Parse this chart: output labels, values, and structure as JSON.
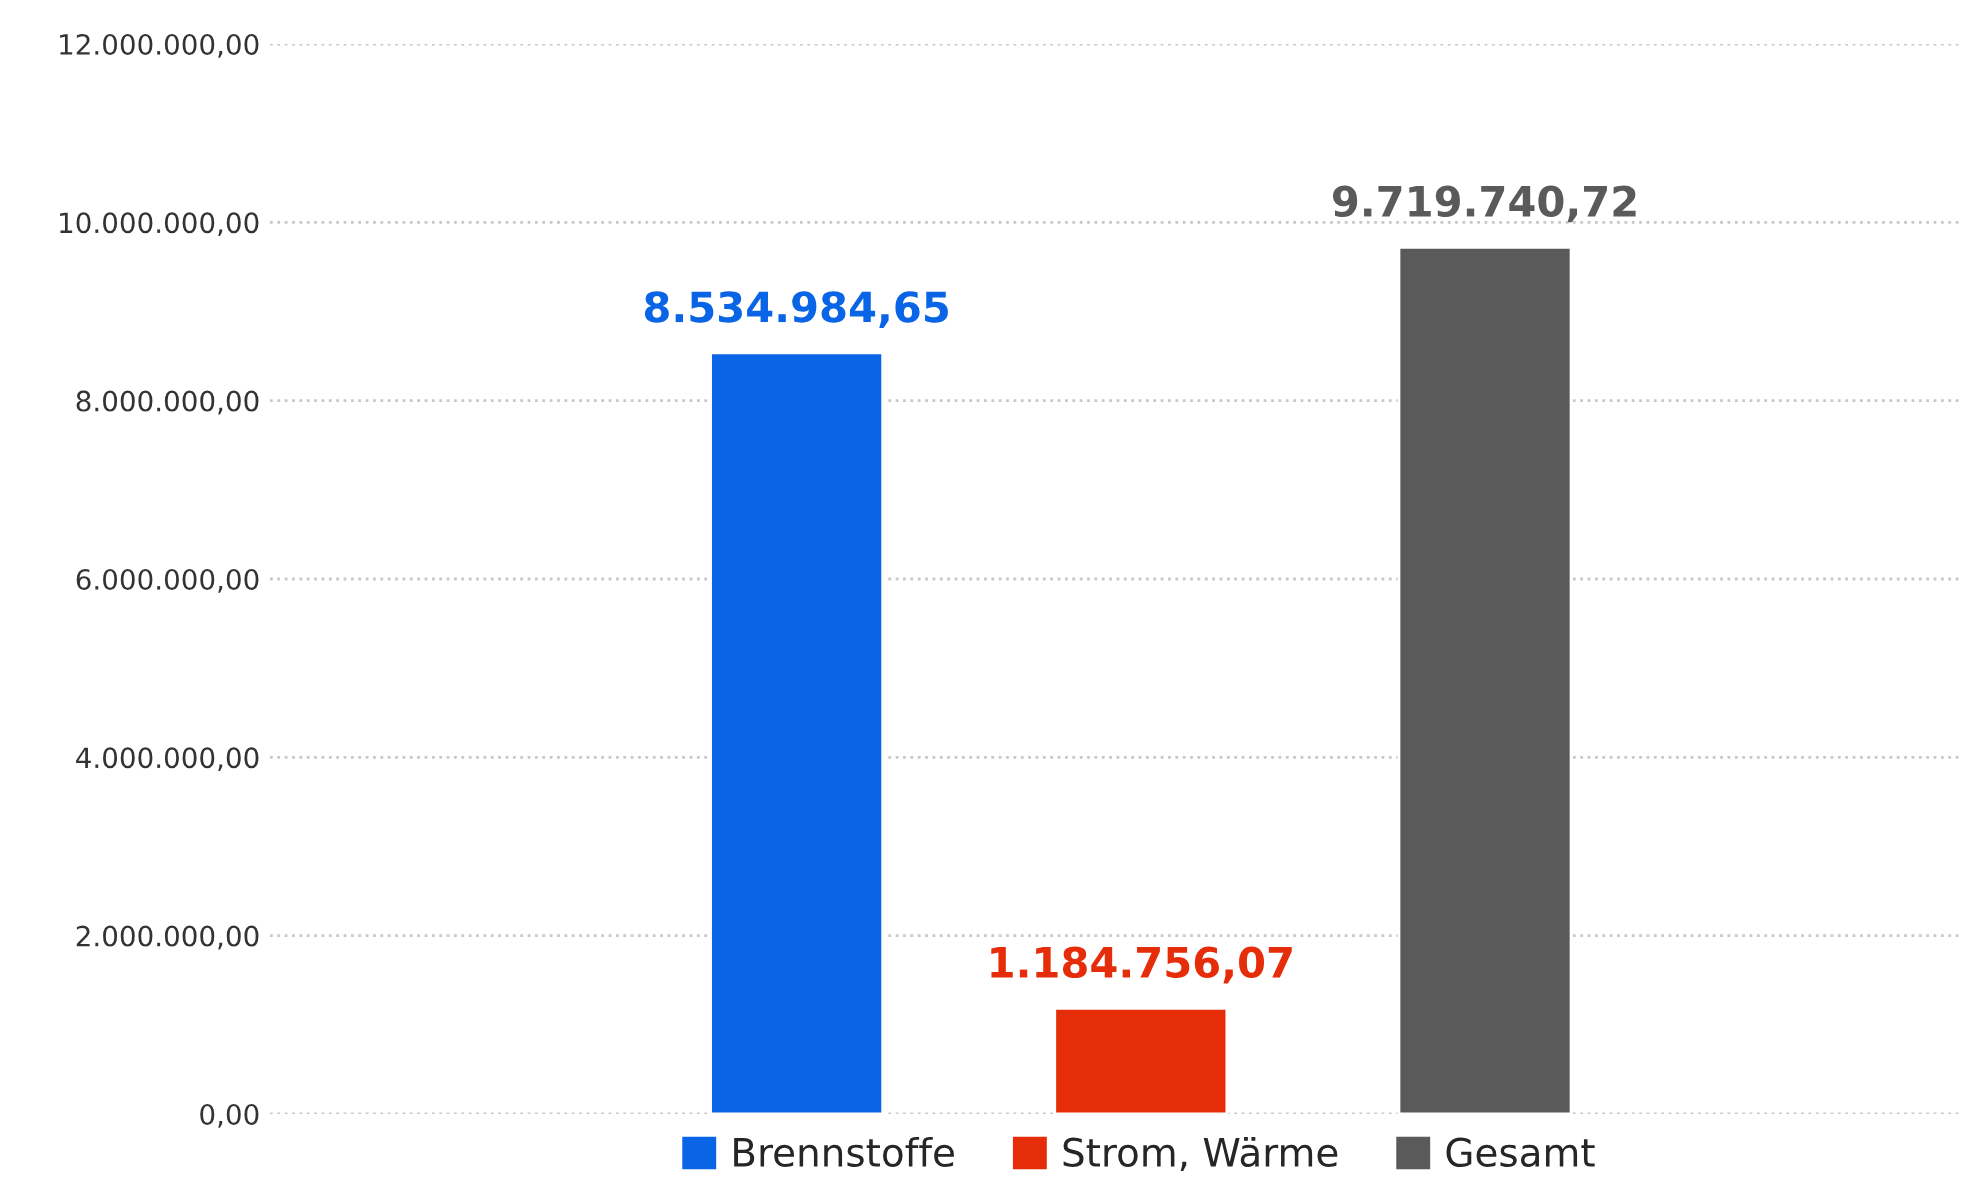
{
  "chart_data": {
    "type": "bar",
    "categories": [
      null
    ],
    "series": [
      {
        "name": "Brennstoffe",
        "color": "#0a64e6",
        "values": [
          8534984.65
        ],
        "value_labels": [
          "8.534.984,65"
        ]
      },
      {
        "name": "Strom, Wärme",
        "color": "#e62d0a",
        "values": [
          1184756.07
        ],
        "value_labels": [
          "1.184.756,07"
        ]
      },
      {
        "name": "Gesamt",
        "color": "#5a5a5a",
        "values": [
          9719740.72
        ],
        "value_labels": [
          "9.719.740,72"
        ]
      }
    ],
    "ylim": [
      0,
      12000000
    ],
    "yticks": [
      {
        "value": 0,
        "label": "0,00"
      },
      {
        "value": 2000000,
        "label": "2.000.000,00"
      },
      {
        "value": 4000000,
        "label": "4.000.000,00"
      },
      {
        "value": 6000000,
        "label": "6.000.000,00"
      },
      {
        "value": 8000000,
        "label": "8.000.000,00"
      },
      {
        "value": 10000000,
        "label": "10.000.000,00"
      },
      {
        "value": 12000000,
        "label": "12.000.000,00"
      }
    ],
    "grid": "y",
    "legend": "bottom"
  }
}
